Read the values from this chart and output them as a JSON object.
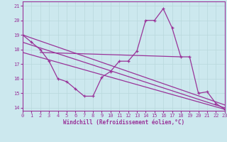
{
  "background_color": "#cce8ee",
  "grid_color": "#b8d8dc",
  "line_color": "#993399",
  "xlim": [
    0,
    23
  ],
  "ylim": [
    13.8,
    21.3
  ],
  "xticks": [
    0,
    1,
    2,
    3,
    4,
    5,
    6,
    7,
    8,
    9,
    10,
    11,
    12,
    13,
    14,
    15,
    16,
    17,
    18,
    19,
    20,
    21,
    22,
    23
  ],
  "yticks": [
    14,
    15,
    16,
    17,
    18,
    19,
    20,
    21
  ],
  "xlabel": "Windchill (Refroidissement éolien,°C)",
  "jagged_x": [
    0,
    1,
    2,
    3,
    4,
    5,
    6,
    7,
    8,
    9,
    10,
    11,
    12,
    13,
    14,
    15,
    16,
    17,
    18,
    19,
    20,
    21,
    22,
    23
  ],
  "jagged_y": [
    19.0,
    18.5,
    18.0,
    17.2,
    16.0,
    15.8,
    15.3,
    14.8,
    14.8,
    16.1,
    16.5,
    17.2,
    17.2,
    17.9,
    20.0,
    20.0,
    20.8,
    19.5,
    17.5,
    17.5,
    15.0,
    15.1,
    14.3,
    13.9
  ],
  "trend1_x": [
    0,
    23
  ],
  "trend1_y": [
    19.0,
    14.2
  ],
  "trend2_x": [
    0,
    23
  ],
  "trend2_y": [
    18.5,
    14.0
  ],
  "trend3_x": [
    0,
    23
  ],
  "trend3_y": [
    17.8,
    13.9
  ],
  "flat_line_x": [
    2,
    18
  ],
  "flat_line_y": [
    17.8,
    17.5
  ]
}
